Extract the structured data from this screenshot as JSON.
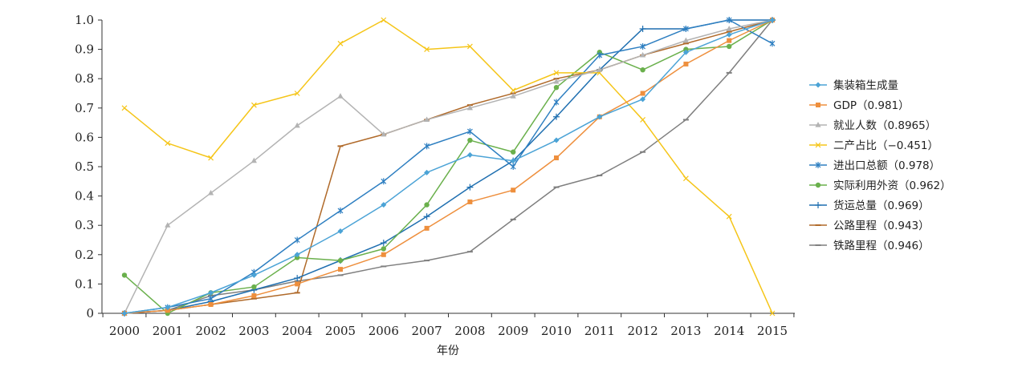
{
  "chart_data": {
    "type": "line",
    "xlabel": "年份",
    "ylabel": "",
    "ylim": [
      0,
      1.0
    ],
    "yticks": [
      "0",
      "0.1",
      "0.2",
      "0.3",
      "0.4",
      "0.5",
      "0.6",
      "0.7",
      "0.8",
      "0.9",
      "1.0"
    ],
    "x": [
      "2000",
      "2001",
      "2002",
      "2003",
      "2004",
      "2005",
      "2006",
      "2007",
      "2008",
      "2009",
      "2010",
      "2011",
      "2012",
      "2013",
      "2014",
      "2015"
    ],
    "legend_position": "right",
    "grid": false,
    "series": [
      {
        "name": "集装箱生成量",
        "color": "#4ba3d6",
        "marker": "diamond",
        "values": [
          0,
          0.02,
          0.07,
          0.13,
          0.2,
          0.28,
          0.37,
          0.48,
          0.54,
          0.52,
          0.59,
          0.67,
          0.73,
          0.89,
          0.95,
          1.0
        ]
      },
      {
        "name": "GDP（0.981）",
        "color": "#ee8f3d",
        "marker": "square",
        "values": [
          0,
          0.01,
          0.03,
          0.06,
          0.1,
          0.15,
          0.2,
          0.29,
          0.38,
          0.42,
          0.53,
          0.67,
          0.75,
          0.85,
          0.93,
          1.0
        ]
      },
      {
        "name": "就业人数（0.8965）",
        "color": "#b3b3b3",
        "marker": "triangle",
        "values": [
          0,
          0.3,
          0.41,
          0.52,
          0.64,
          0.74,
          0.61,
          0.66,
          0.7,
          0.74,
          0.79,
          0.83,
          0.88,
          0.93,
          0.97,
          1.0
        ]
      },
      {
        "name": "二产占比（−0.451）",
        "color": "#f5c518",
        "marker": "x",
        "values": [
          0.7,
          0.58,
          0.53,
          0.71,
          0.75,
          0.92,
          1.0,
          0.9,
          0.91,
          0.76,
          0.82,
          0.82,
          0.66,
          0.46,
          0.33,
          0
        ]
      },
      {
        "name": "进出口总额（0.978）",
        "color": "#2e7fc1",
        "marker": "star",
        "values": [
          0,
          0.02,
          0.05,
          0.14,
          0.25,
          0.35,
          0.45,
          0.57,
          0.62,
          0.5,
          0.72,
          0.88,
          0.91,
          0.97,
          1.0,
          0.92
        ]
      },
      {
        "name": "实际利用外资（0.962）",
        "color": "#6ab04c",
        "marker": "circle",
        "values": [
          0.13,
          0,
          0.07,
          0.09,
          0.19,
          0.18,
          0.22,
          0.37,
          0.59,
          0.55,
          0.77,
          0.89,
          0.83,
          0.9,
          0.91,
          1.0
        ]
      },
      {
        "name": "货运总量（0.969）",
        "color": "#1f6fb0",
        "marker": "plus",
        "values": [
          0,
          0.01,
          0.04,
          0.08,
          0.12,
          0.18,
          0.24,
          0.33,
          0.43,
          0.52,
          0.67,
          0.83,
          0.97,
          0.97,
          1.0,
          1.0
        ]
      },
      {
        "name": "公路里程（0.943）",
        "color": "#b06a2a",
        "marker": "dash",
        "values": [
          0,
          0.01,
          0.03,
          0.05,
          0.07,
          0.57,
          0.61,
          0.66,
          0.71,
          0.75,
          0.8,
          0.83,
          0.88,
          0.92,
          0.96,
          1.0
        ]
      },
      {
        "name": "铁路里程（0.946）",
        "color": "#7f7f7f",
        "marker": "dash",
        "values": [
          0,
          0.01,
          0.06,
          0.08,
          0.11,
          0.13,
          0.16,
          0.18,
          0.21,
          0.32,
          0.43,
          0.47,
          0.55,
          0.66,
          0.82,
          1.0
        ]
      }
    ]
  }
}
